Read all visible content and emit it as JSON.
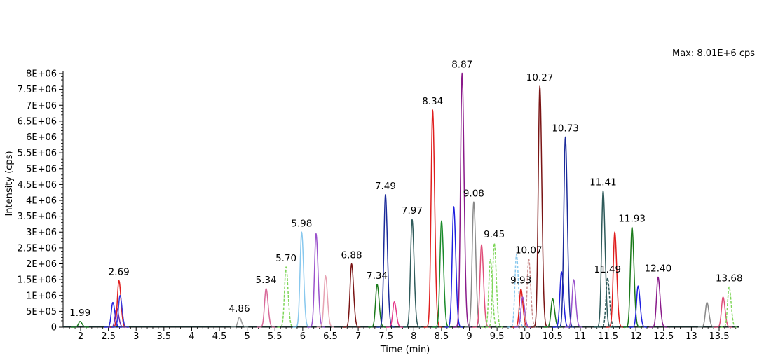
{
  "chart_data": {
    "type": "line",
    "title": "",
    "max_label": "Max: 8.01E+6 cps",
    "xlabel": "Time (min)",
    "ylabel": "Intensity (cps)",
    "xlim": [
      1.7,
      14.1
    ],
    "ylim": [
      0,
      8000000
    ],
    "x_ticks": [
      {
        "value": 2,
        "label": "2"
      },
      {
        "value": 2.5,
        "label": "2.5"
      },
      {
        "value": 3,
        "label": "3"
      },
      {
        "value": 3.5,
        "label": "3.5"
      },
      {
        "value": 4,
        "label": "4"
      },
      {
        "value": 4.5,
        "label": "4.5"
      },
      {
        "value": 5,
        "label": "5"
      },
      {
        "value": 5.5,
        "label": "5.5"
      },
      {
        "value": 6,
        "label": "6"
      },
      {
        "value": 6.5,
        "label": "6.5"
      },
      {
        "value": 7,
        "label": "7"
      },
      {
        "value": 7.5,
        "label": "7.5"
      },
      {
        "value": 8,
        "label": "8"
      },
      {
        "value": 8.5,
        "label": "8.5"
      },
      {
        "value": 9,
        "label": "9"
      },
      {
        "value": 9.5,
        "label": "9.5"
      },
      {
        "value": 10,
        "label": "10"
      },
      {
        "value": 10.5,
        "label": "10.5"
      },
      {
        "value": 11,
        "label": "11"
      },
      {
        "value": 11.5,
        "label": "11.5"
      },
      {
        "value": 12,
        "label": "12"
      },
      {
        "value": 12.5,
        "label": "12.5"
      },
      {
        "value": 13,
        "label": "13"
      },
      {
        "value": 13.5,
        "label": "13.5"
      }
    ],
    "y_ticks": [
      {
        "value": 0,
        "label": "0"
      },
      {
        "value": 500000,
        "label": "5E+05"
      },
      {
        "value": 1000000,
        "label": "1E+06"
      },
      {
        "value": 1500000,
        "label": "1.5E+06"
      },
      {
        "value": 2000000,
        "label": "2E+06"
      },
      {
        "value": 2500000,
        "label": "2.5E+06"
      },
      {
        "value": 3000000,
        "label": "3E+06"
      },
      {
        "value": 3500000,
        "label": "3.5E+06"
      },
      {
        "value": 4000000,
        "label": "4E+06"
      },
      {
        "value": 4500000,
        "label": "4.5E+06"
      },
      {
        "value": 5000000,
        "label": "5E+06"
      },
      {
        "value": 5500000,
        "label": "5.5E+06"
      },
      {
        "value": 6000000,
        "label": "6E+06"
      },
      {
        "value": 6500000,
        "label": "6.5E+06"
      },
      {
        "value": 7000000,
        "label": "7E+06"
      },
      {
        "value": 7500000,
        "label": "7.5E+06"
      },
      {
        "value": 8000000,
        "label": "8E+06"
      }
    ],
    "peaks": [
      {
        "rt": 1.99,
        "height": 180000,
        "color": "#1a7a1a",
        "label": "1.99",
        "dash": false
      },
      {
        "rt": 2.58,
        "height": 780000,
        "color": "#1f1fe0",
        "label": "",
        "dash": false
      },
      {
        "rt": 2.65,
        "height": 600000,
        "color": "#6a2ab0",
        "label": "",
        "dash": false
      },
      {
        "rt": 2.69,
        "height": 1470000,
        "color": "#e01e1e",
        "label": "2.69",
        "dash": false
      },
      {
        "rt": 2.71,
        "height": 1000000,
        "color": "#3a3adb",
        "label": "",
        "dash": false
      },
      {
        "rt": 4.86,
        "height": 310000,
        "color": "#9a9a9a",
        "label": "4.86",
        "dash": false
      },
      {
        "rt": 5.34,
        "height": 1220000,
        "color": "#d96a9a",
        "label": "5.34",
        "dash": false
      },
      {
        "rt": 5.7,
        "height": 1900000,
        "color": "#7fd65a",
        "label": "5.70",
        "dash": true
      },
      {
        "rt": 5.98,
        "height": 3000000,
        "color": "#88c8ee",
        "label": "5.98",
        "dash": false
      },
      {
        "rt": 6.24,
        "height": 2950000,
        "color": "#9a52cc",
        "label": "",
        "dash": false
      },
      {
        "rt": 6.41,
        "height": 1620000,
        "color": "#e7a3b3",
        "label": "",
        "dash": false
      },
      {
        "rt": 6.88,
        "height": 2000000,
        "color": "#7a1414",
        "label": "6.88",
        "dash": false
      },
      {
        "rt": 7.34,
        "height": 1350000,
        "color": "#1a7a1a",
        "label": "7.34",
        "dash": false
      },
      {
        "rt": 7.49,
        "height": 4180000,
        "color": "#1a2a9a",
        "label": "7.49",
        "dash": false
      },
      {
        "rt": 7.65,
        "height": 800000,
        "color": "#e63a8a",
        "label": "",
        "dash": false
      },
      {
        "rt": 7.97,
        "height": 3400000,
        "color": "#2e5a5a",
        "label": "7.97",
        "dash": false
      },
      {
        "rt": 8.34,
        "height": 6850000,
        "color": "#e01e1e",
        "label": "8.34",
        "dash": false
      },
      {
        "rt": 8.5,
        "height": 3350000,
        "color": "#1a8a2a",
        "label": "",
        "dash": false
      },
      {
        "rt": 8.72,
        "height": 3800000,
        "color": "#1f1fe0",
        "label": "",
        "dash": false
      },
      {
        "rt": 8.87,
        "height": 8010000,
        "color": "#8a1a8a",
        "label": "8.87",
        "dash": false
      },
      {
        "rt": 9.08,
        "height": 3950000,
        "color": "#8a8a8a",
        "label": "9.08",
        "dash": false
      },
      {
        "rt": 9.22,
        "height": 2600000,
        "color": "#e04f7a",
        "label": "",
        "dash": false
      },
      {
        "rt": 9.38,
        "height": 2150000,
        "color": "#7fd65a",
        "label": "",
        "dash": true
      },
      {
        "rt": 9.45,
        "height": 2650000,
        "color": "#7fd65a",
        "label": "9.45",
        "dash": true
      },
      {
        "rt": 9.85,
        "height": 2300000,
        "color": "#88c8ee",
        "label": "",
        "dash": true
      },
      {
        "rt": 9.93,
        "height": 1200000,
        "color": "#e01e1e",
        "label": "9.93",
        "dash": false
      },
      {
        "rt": 9.96,
        "height": 950000,
        "color": "#9a52cc",
        "label": "",
        "dash": false
      },
      {
        "rt": 10.07,
        "height": 2150000,
        "color": "#c98a8a",
        "label": "10.07",
        "dash": true
      },
      {
        "rt": 10.27,
        "height": 7600000,
        "color": "#7a1414",
        "label": "10.27",
        "dash": false
      },
      {
        "rt": 10.5,
        "height": 900000,
        "color": "#1a7a1a",
        "label": "",
        "dash": false
      },
      {
        "rt": 10.66,
        "height": 1750000,
        "color": "#1f1fe0",
        "label": "",
        "dash": false
      },
      {
        "rt": 10.73,
        "height": 6000000,
        "color": "#1a2a9a",
        "label": "10.73",
        "dash": false
      },
      {
        "rt": 10.88,
        "height": 1500000,
        "color": "#9a52cc",
        "label": "",
        "dash": false
      },
      {
        "rt": 11.41,
        "height": 4300000,
        "color": "#2e5a5a",
        "label": "11.41",
        "dash": false
      },
      {
        "rt": 11.49,
        "height": 1550000,
        "color": "#2e5a5a",
        "label": "11.49",
        "dash": true
      },
      {
        "rt": 11.62,
        "height": 3000000,
        "color": "#e01e1e",
        "label": "",
        "dash": false
      },
      {
        "rt": 11.93,
        "height": 3150000,
        "color": "#1a7a1a",
        "label": "11.93",
        "dash": false
      },
      {
        "rt": 12.04,
        "height": 1300000,
        "color": "#1f1fe0",
        "label": "",
        "dash": false
      },
      {
        "rt": 12.4,
        "height": 1580000,
        "color": "#8a1a8a",
        "label": "12.40",
        "dash": false
      },
      {
        "rt": 13.28,
        "height": 780000,
        "color": "#8a8a8a",
        "label": "",
        "dash": false
      },
      {
        "rt": 13.57,
        "height": 950000,
        "color": "#e04f7a",
        "label": "",
        "dash": false
      },
      {
        "rt": 13.68,
        "height": 1270000,
        "color": "#7fd65a",
        "label": "13.68",
        "dash": true
      }
    ]
  }
}
